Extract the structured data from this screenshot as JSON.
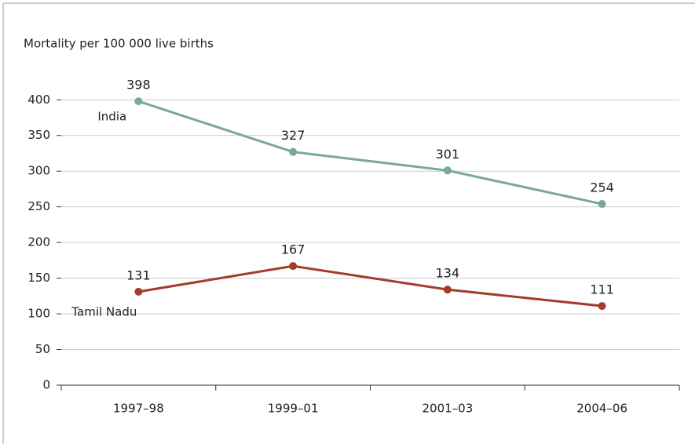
{
  "chart_data": {
    "type": "line",
    "ylabel": "Mortality per 100 000 live births",
    "categories": [
      "1997–98",
      "1999–01",
      "2001–03",
      "2004–06"
    ],
    "series": [
      {
        "name": "India",
        "color": "#7aa79b",
        "values": [
          398,
          327,
          301,
          254
        ]
      },
      {
        "name": "Tamil Nadu",
        "color": "#a63a2b",
        "values": [
          131,
          167,
          134,
          111
        ]
      }
    ],
    "ylim": [
      0,
      430
    ],
    "yticks": [
      0,
      50,
      100,
      150,
      200,
      250,
      300,
      350,
      400
    ],
    "grid": true
  }
}
